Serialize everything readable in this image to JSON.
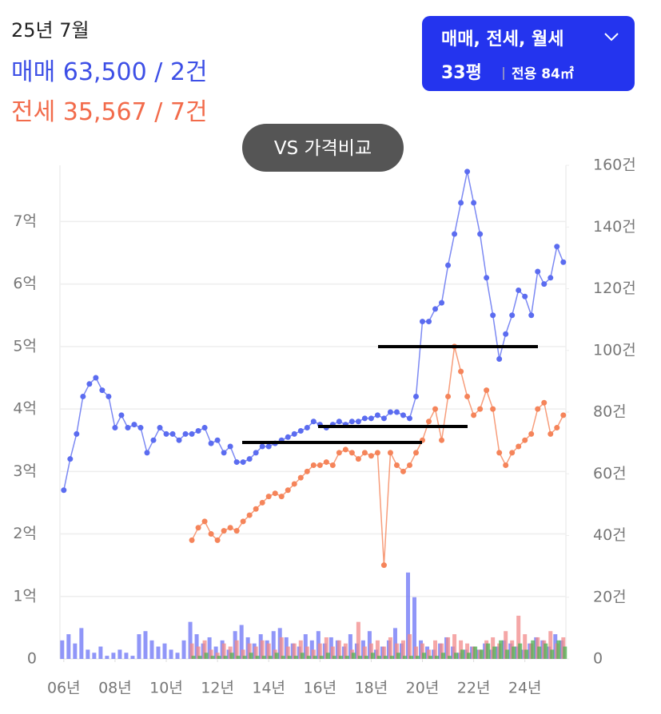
{
  "header": {
    "date": "25년 7월",
    "sale": "매매 63,500 / 2건",
    "jeonse": "전세 35,567 / 7건"
  },
  "filter": {
    "label": "매매, 전세, 월세",
    "size": "33평",
    "area": "전용 84㎡"
  },
  "compare_button": "VS 가격비교",
  "chart_data": {
    "type": "line",
    "x": [
      2006,
      2006.25,
      2006.5,
      2006.75,
      2007,
      2007.25,
      2007.5,
      2007.75,
      2008,
      2008.25,
      2008.5,
      2008.75,
      2009,
      2009.25,
      2009.5,
      2009.75,
      2010,
      2010.25,
      2010.5,
      2010.75,
      2011,
      2011.25,
      2011.5,
      2011.75,
      2012,
      2012.25,
      2012.5,
      2012.75,
      2013,
      2013.25,
      2013.5,
      2013.75,
      2014,
      2014.25,
      2014.5,
      2014.75,
      2015,
      2015.25,
      2015.5,
      2015.75,
      2016,
      2016.25,
      2016.5,
      2016.75,
      2017,
      2017.25,
      2017.5,
      2017.75,
      2018,
      2018.25,
      2018.5,
      2018.75,
      2019,
      2019.25,
      2019.5,
      2019.75,
      2020,
      2020.25,
      2020.5,
      2020.75,
      2021,
      2021.25,
      2021.5,
      2021.75,
      2022,
      2022.25,
      2022.5,
      2022.75,
      2023,
      2023.25,
      2023.5,
      2023.75,
      2024,
      2024.25,
      2024.5,
      2024.75,
      2025,
      2025.25,
      2025.5
    ],
    "series": [
      {
        "mark": "line",
        "color": "#5b6cf0",
        "values": [
          2.7,
          3.2,
          3.6,
          4.2,
          4.4,
          4.5,
          4.3,
          4.2,
          3.7,
          3.9,
          3.7,
          3.75,
          3.7,
          3.3,
          3.5,
          3.7,
          3.6,
          3.6,
          3.5,
          3.6,
          3.6,
          3.65,
          3.7,
          3.45,
          3.5,
          3.3,
          3.4,
          3.15,
          3.15,
          3.2,
          3.3,
          3.4,
          3.4,
          3.45,
          3.5,
          3.55,
          3.6,
          3.65,
          3.7,
          3.8,
          3.75,
          3.7,
          3.75,
          3.8,
          3.75,
          3.8,
          3.8,
          3.85,
          3.85,
          3.9,
          3.85,
          3.95,
          3.95,
          3.9,
          3.85,
          4.2,
          5.4,
          5.4,
          5.6,
          5.7,
          6.3,
          6.8,
          7.3,
          7.8,
          7.3,
          6.8,
          6.1,
          5.5,
          4.8,
          5.2,
          5.5,
          5.9,
          5.8,
          5.5,
          6.2,
          6.0,
          6.1,
          6.6,
          6.35
        ]
      },
      {
        "mark": "line",
        "color": "#f5845a",
        "values": [
          null,
          null,
          null,
          null,
          null,
          null,
          null,
          null,
          null,
          null,
          null,
          null,
          null,
          null,
          null,
          null,
          null,
          null,
          null,
          null,
          1.9,
          2.1,
          2.2,
          2.0,
          1.9,
          2.05,
          2.1,
          2.05,
          2.2,
          2.3,
          2.4,
          2.5,
          2.6,
          2.65,
          2.6,
          2.7,
          2.8,
          2.9,
          3.0,
          3.1,
          3.1,
          3.15,
          3.1,
          3.3,
          3.35,
          3.3,
          3.2,
          3.3,
          3.25,
          3.3,
          1.5,
          3.3,
          3.1,
          3.0,
          3.1,
          3.3,
          3.5,
          3.8,
          4.0,
          3.5,
          4.2,
          5.0,
          4.6,
          4.2,
          3.9,
          4.0,
          4.3,
          4.0,
          3.3,
          3.1,
          3.3,
          3.4,
          3.5,
          3.6,
          4.0,
          4.1,
          3.6,
          3.7,
          3.9
        ]
      },
      {
        "mark": "bar",
        "axis": "y2",
        "color": "#6b73f5",
        "values": [
          6,
          8,
          5,
          10,
          3,
          2,
          4,
          1,
          2,
          3,
          2,
          1,
          8,
          9,
          6,
          4,
          5,
          3,
          2,
          6,
          12,
          8,
          5,
          7,
          4,
          6,
          3,
          9,
          11,
          7,
          5,
          8,
          6,
          9,
          10,
          7,
          5,
          4,
          8,
          6,
          9,
          5,
          7,
          6,
          4,
          8,
          5,
          6,
          9,
          3,
          4,
          6,
          10,
          5,
          28,
          20,
          6,
          4,
          3,
          5,
          7,
          4,
          2,
          3,
          4,
          3,
          5,
          3,
          4,
          6,
          5,
          4,
          3,
          5,
          7,
          6,
          4,
          8,
          6
        ]
      },
      {
        "mark": "bar",
        "axis": "y2",
        "color": "#f28a8a",
        "values": [
          null,
          null,
          null,
          null,
          null,
          null,
          null,
          null,
          null,
          null,
          null,
          null,
          null,
          null,
          null,
          null,
          null,
          null,
          null,
          null,
          5,
          4,
          6,
          3,
          2,
          5,
          4,
          6,
          3,
          5,
          4,
          6,
          5,
          3,
          7,
          4,
          5,
          6,
          4,
          3,
          5,
          7,
          4,
          6,
          5,
          3,
          12,
          4,
          5,
          6,
          4,
          7,
          5,
          6,
          8,
          4,
          5,
          3,
          6,
          5,
          7,
          8,
          6,
          5,
          4,
          3,
          6,
          7,
          5,
          9,
          6,
          14,
          8,
          5,
          7,
          6,
          9,
          5,
          7
        ]
      },
      {
        "mark": "bar",
        "axis": "y2",
        "color": "#4caf50",
        "values": [
          null,
          null,
          null,
          null,
          null,
          null,
          null,
          null,
          null,
          null,
          null,
          null,
          null,
          null,
          null,
          null,
          null,
          null,
          null,
          null,
          1,
          1,
          2,
          1,
          1,
          1,
          2,
          1,
          1,
          2,
          1,
          1,
          1,
          2,
          1,
          1,
          1,
          2,
          1,
          1,
          1,
          2,
          1,
          1,
          1,
          2,
          1,
          1,
          2,
          1,
          1,
          1,
          2,
          1,
          1,
          1,
          2,
          1,
          1,
          2,
          1,
          2,
          3,
          2,
          4,
          3,
          5,
          4,
          6,
          3,
          4,
          5,
          3,
          6,
          4,
          5,
          3,
          6,
          4
        ]
      }
    ],
    "xlim": [
      2005.85,
      2025.6
    ],
    "xticks": [
      {
        "value": 2006,
        "label": "06년"
      },
      {
        "value": 2008,
        "label": "08년"
      },
      {
        "value": 2010,
        "label": "10년"
      },
      {
        "value": 2012,
        "label": "12년"
      },
      {
        "value": 2014,
        "label": "14년"
      },
      {
        "value": 2016,
        "label": "16년"
      },
      {
        "value": 2018,
        "label": "18년"
      },
      {
        "value": 2020,
        "label": "20년"
      },
      {
        "value": 2022,
        "label": "22년"
      },
      {
        "value": 2024,
        "label": "24년"
      }
    ],
    "ylim": [
      0,
      7.9
    ],
    "yticks": [
      0,
      {
        "value": 1,
        "label": "1억"
      },
      {
        "value": 2,
        "label": "2억"
      },
      {
        "value": 3,
        "label": "3억"
      },
      {
        "value": 4,
        "label": "4억"
      },
      {
        "value": 5,
        "label": "5억"
      },
      {
        "value": 6,
        "label": "6억"
      },
      {
        "value": 7,
        "label": "7억"
      }
    ],
    "y2lim": [
      0,
      160
    ],
    "y2ticks": [
      0,
      {
        "value": 20,
        "label": "20건"
      },
      {
        "value": 40,
        "label": "40건"
      },
      {
        "value": 60,
        "label": "60건"
      },
      {
        "value": 80,
        "label": "80건"
      },
      {
        "value": 100,
        "label": "100건"
      },
      {
        "value": 120,
        "label": "120건"
      },
      {
        "value": 140,
        "label": "140건"
      },
      {
        "value": 160,
        "label": "160건"
      }
    ],
    "grid": true
  }
}
